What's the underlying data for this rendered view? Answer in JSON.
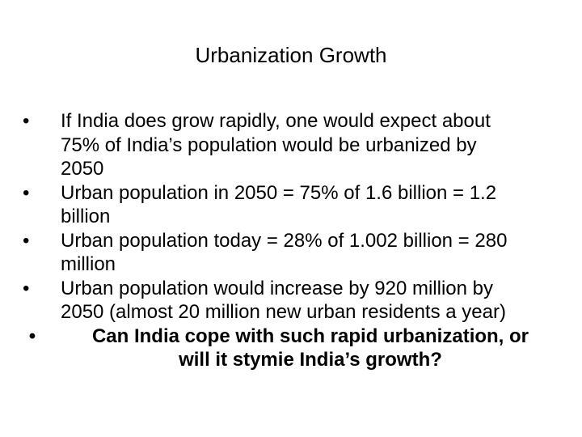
{
  "slide": {
    "title": "Urbanization Growth",
    "bullet_symbol": "•",
    "bullets": [
      {
        "lines": [
          "If India does grow rapidly, one would expect about",
          "75% of India’s population would be urbanized by",
          "2050"
        ]
      },
      {
        "lines": [
          "Urban population in 2050 = 75% of 1.6 billion = 1.2",
          "billion"
        ]
      },
      {
        "lines": [
          "Urban population today = 28% of 1.002 billion = 280",
          "million"
        ]
      },
      {
        "lines": [
          "Urban population would increase by 920 million by",
          "2050 (almost 20 million new urban residents a year)"
        ]
      },
      {
        "lines": [
          "Can India cope with such rapid urbanization, or",
          "will it stymie India’s growth?"
        ]
      }
    ]
  }
}
